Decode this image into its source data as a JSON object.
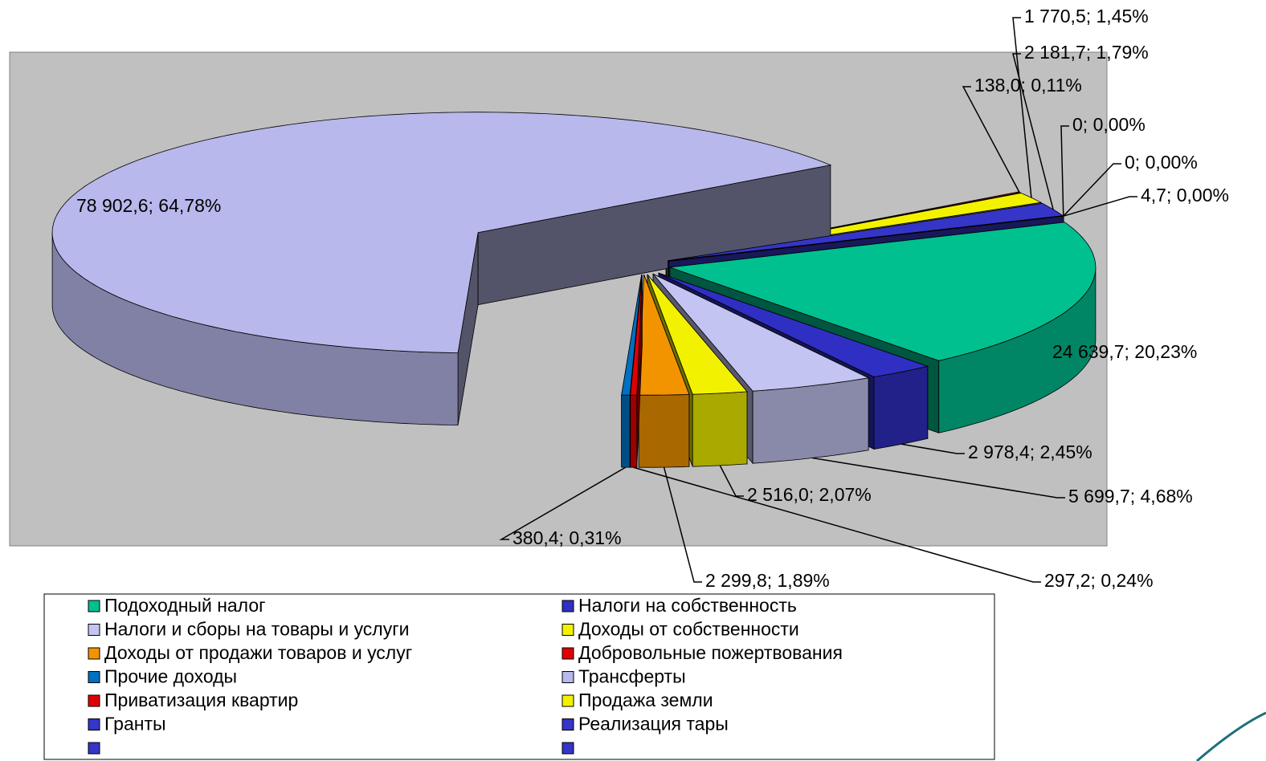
{
  "chart_data": {
    "type": "pie",
    "categories": [
      "Подоходный налог",
      "Налоги на собственность",
      "Налоги и сборы на товары и услуги",
      "Доходы от собственности",
      "Доходы от продажи товаров и услуг",
      "Добровольные пожертвования",
      "Прочие доходы",
      "Трансферты",
      "Приватизация квартир",
      "Продажа земли",
      "Гранты",
      "Реализация тары",
      null,
      null
    ],
    "values": [
      24639.7,
      2978.4,
      5699.7,
      2516.0,
      2299.8,
      297.2,
      380.4,
      78902.6,
      138.0,
      1770.5,
      2181.7,
      0,
      0,
      4.7
    ],
    "value_labels": [
      "24 639,7; 20,23%",
      "2 978,4; 2,45%",
      "5 699,7; 4,68%",
      "2 516,0; 2,07%",
      "2 299,8; 1,89%",
      "297,2; 0,24%",
      "380,4; 0,31%",
      "78 902,6; 64,78%",
      "138,0; 0,11%",
      "1 770,5; 1,45%",
      "2 181,7; 1,79%",
      "0; 0,00%",
      "0; 0,00%",
      "4,7; 0,00%"
    ],
    "colors": [
      "#00c08f",
      "#2f2fc4",
      "#c4c4f2",
      "#f2f200",
      "#f29400",
      "#e00000",
      "#0070c0",
      "#b8b8ec",
      "#e00000",
      "#f2f200",
      "#3535c8",
      "#3535c8",
      "#3535c8",
      "#3535c8"
    ],
    "legend": "bottom"
  }
}
